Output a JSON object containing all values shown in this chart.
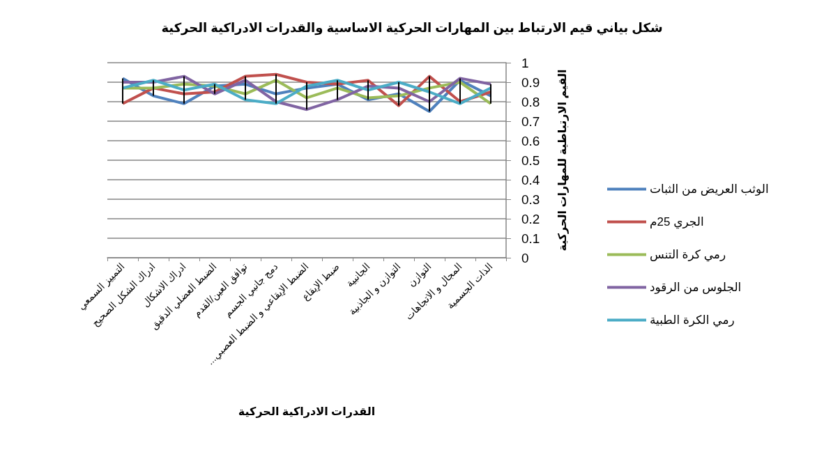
{
  "chart_data": {
    "type": "line",
    "title": "شكل بياني قيم الارتباط بين المهارات الحركية الاساسية والقدرات الادراكية الحركية",
    "xlabel": "القدرات الادراكية الحركية",
    "ylabel": "القيم الارتباطية للمهارات الحركية",
    "categories": [
      "التمييز السمعي",
      "ادراك الشكل الصحيح",
      "ادراك الاشكال",
      "الضبط العضلي الدقيق",
      "توافق العين/القدم",
      "دمج جانبي الجسم",
      "الضبط الإيقاعي و الضبط العصبي...",
      "ضبط الإيقاع",
      "الجانبية",
      "التوازن و الجاذبية",
      "التوازن",
      "المجال و الاتجاهات",
      "الذات الجسمية"
    ],
    "series": [
      {
        "name": "الوثب العريض من الثبات",
        "color": "#4f81bd",
        "values": [
          0.92,
          0.83,
          0.79,
          0.88,
          0.89,
          0.84,
          0.87,
          0.89,
          0.81,
          0.84,
          0.75,
          0.91,
          0.83
        ]
      },
      {
        "name": "الجري 25م",
        "color": "#c0504d",
        "values": [
          0.79,
          0.87,
          0.84,
          0.85,
          0.93,
          0.94,
          0.9,
          0.89,
          0.91,
          0.78,
          0.93,
          0.8,
          0.85
        ]
      },
      {
        "name": "رمي كرة التنس",
        "color": "#9bbb59",
        "values": [
          0.87,
          0.87,
          0.89,
          0.88,
          0.84,
          0.91,
          0.82,
          0.87,
          0.82,
          0.83,
          0.87,
          0.9,
          0.79
        ]
      },
      {
        "name": "الجلوس من الرقود",
        "color": "#8064a2",
        "values": [
          0.9,
          0.9,
          0.93,
          0.84,
          0.91,
          0.8,
          0.76,
          0.81,
          0.88,
          0.87,
          0.8,
          0.92,
          0.89
        ]
      },
      {
        "name": "رمي الكرة الطبية",
        "color": "#4bacc6",
        "values": [
          0.87,
          0.91,
          0.86,
          0.89,
          0.81,
          0.79,
          0.88,
          0.91,
          0.86,
          0.9,
          0.85,
          0.79,
          0.87
        ]
      },
      {
        "type": "bar",
        "color": "#000000",
        "base": [
          0.79,
          0.83,
          0.79,
          0.84,
          0.81,
          0.79,
          0.76,
          0.81,
          0.81,
          0.78,
          0.75,
          0.79,
          0.79
        ],
        "values": [
          0.13,
          0.08,
          0.14,
          0.05,
          0.12,
          0.15,
          0.14,
          0.1,
          0.1,
          0.12,
          0.18,
          0.13,
          0.1
        ]
      }
    ],
    "ylim": [
      0,
      1
    ],
    "yticks": [
      0,
      0.1,
      0.2,
      0.3,
      0.4,
      0.5,
      0.6,
      0.7,
      0.8,
      0.9,
      1
    ],
    "grid": "y",
    "legend": "right",
    "marker": "none",
    "line_style": "solid"
  }
}
